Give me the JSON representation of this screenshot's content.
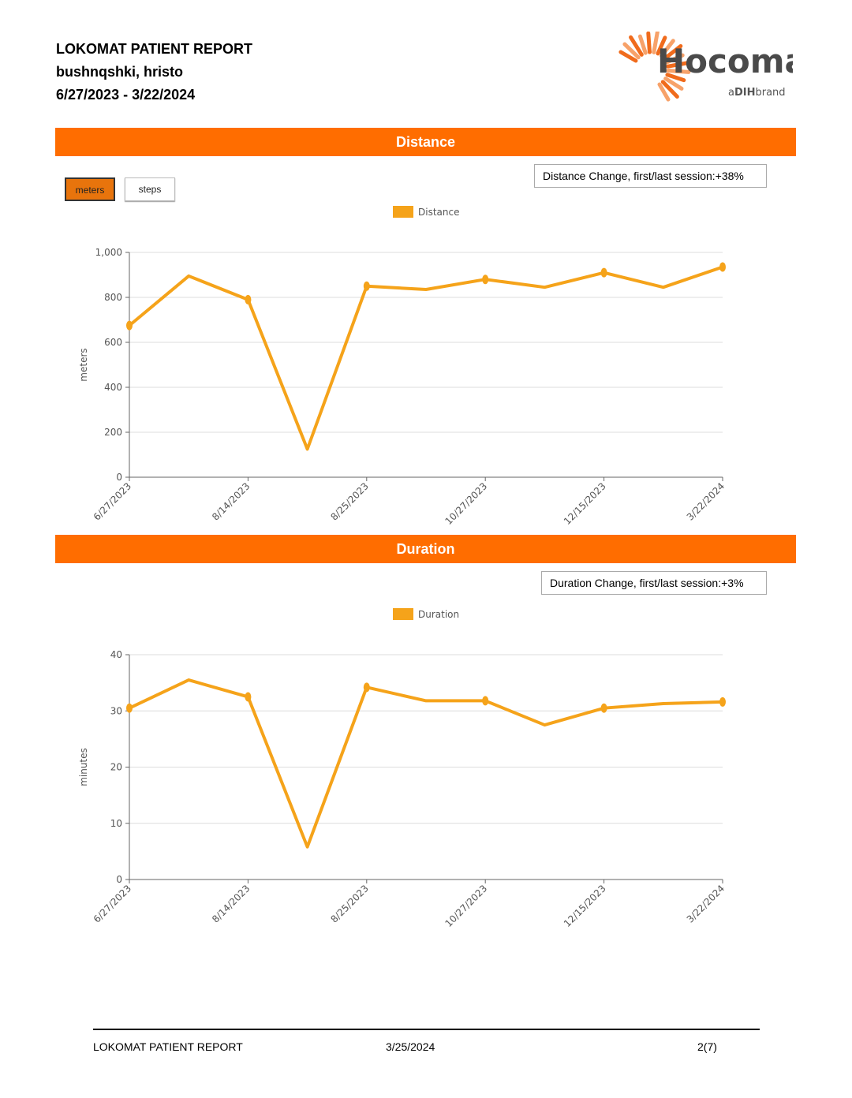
{
  "header": {
    "title": "LOKOMAT PATIENT REPORT",
    "patient": "bushnqshki, hristo",
    "date_range": "6/27/2023 - 3/22/2024"
  },
  "logo": {
    "name": "Hocoma",
    "tagline_a": "a",
    "tagline_b": "DIH",
    "tagline_c": "brand"
  },
  "distance_section": {
    "title": "Distance",
    "buttons": {
      "meters": "meters",
      "steps": "steps"
    },
    "change_text": "Distance Change, first/last session:+38%"
  },
  "duration_section": {
    "title": "Duration",
    "change_text": "Duration Change, first/last session:+3%"
  },
  "chart_data": [
    {
      "type": "line",
      "legend": "Distance",
      "legend_position": "top",
      "ylabel": "meters",
      "ylim": [
        0,
        1000
      ],
      "yticks": [
        0,
        200,
        400,
        600,
        800,
        1000
      ],
      "ytick_labels": [
        "0",
        "200",
        "400",
        "600",
        "800",
        "1,000"
      ],
      "xtick_labels": [
        "6/27/2023",
        "8/14/2023",
        "8/25/2023",
        "10/27/2023",
        "12/15/2023",
        "3/22/2024"
      ],
      "series": [
        {
          "values": [
            675,
            895,
            790,
            125,
            850,
            835,
            880,
            845,
            910,
            845,
            935
          ]
        }
      ],
      "markers": [
        0,
        2,
        4,
        6,
        8,
        10
      ],
      "color": "#f5a31a",
      "grid": true
    },
    {
      "type": "line",
      "legend": "Duration",
      "legend_position": "top",
      "ylabel": "minutes",
      "ylim": [
        0,
        40
      ],
      "yticks": [
        0,
        10,
        20,
        30,
        40
      ],
      "ytick_labels": [
        "0",
        "10",
        "20",
        "30",
        "40"
      ],
      "xtick_labels": [
        "6/27/2023",
        "8/14/2023",
        "8/25/2023",
        "10/27/2023",
        "12/15/2023",
        "3/22/2024"
      ],
      "series": [
        {
          "values": [
            30.5,
            35.5,
            32.5,
            5.8,
            34.2,
            31.8,
            31.8,
            27.5,
            30.5,
            31.3,
            31.6
          ]
        }
      ],
      "markers": [
        0,
        2,
        4,
        6,
        8,
        10
      ],
      "color": "#f5a31a",
      "grid": true
    }
  ],
  "footer": {
    "left": "LOKOMAT PATIENT REPORT",
    "center": "3/25/2024",
    "right": "2(7)"
  }
}
